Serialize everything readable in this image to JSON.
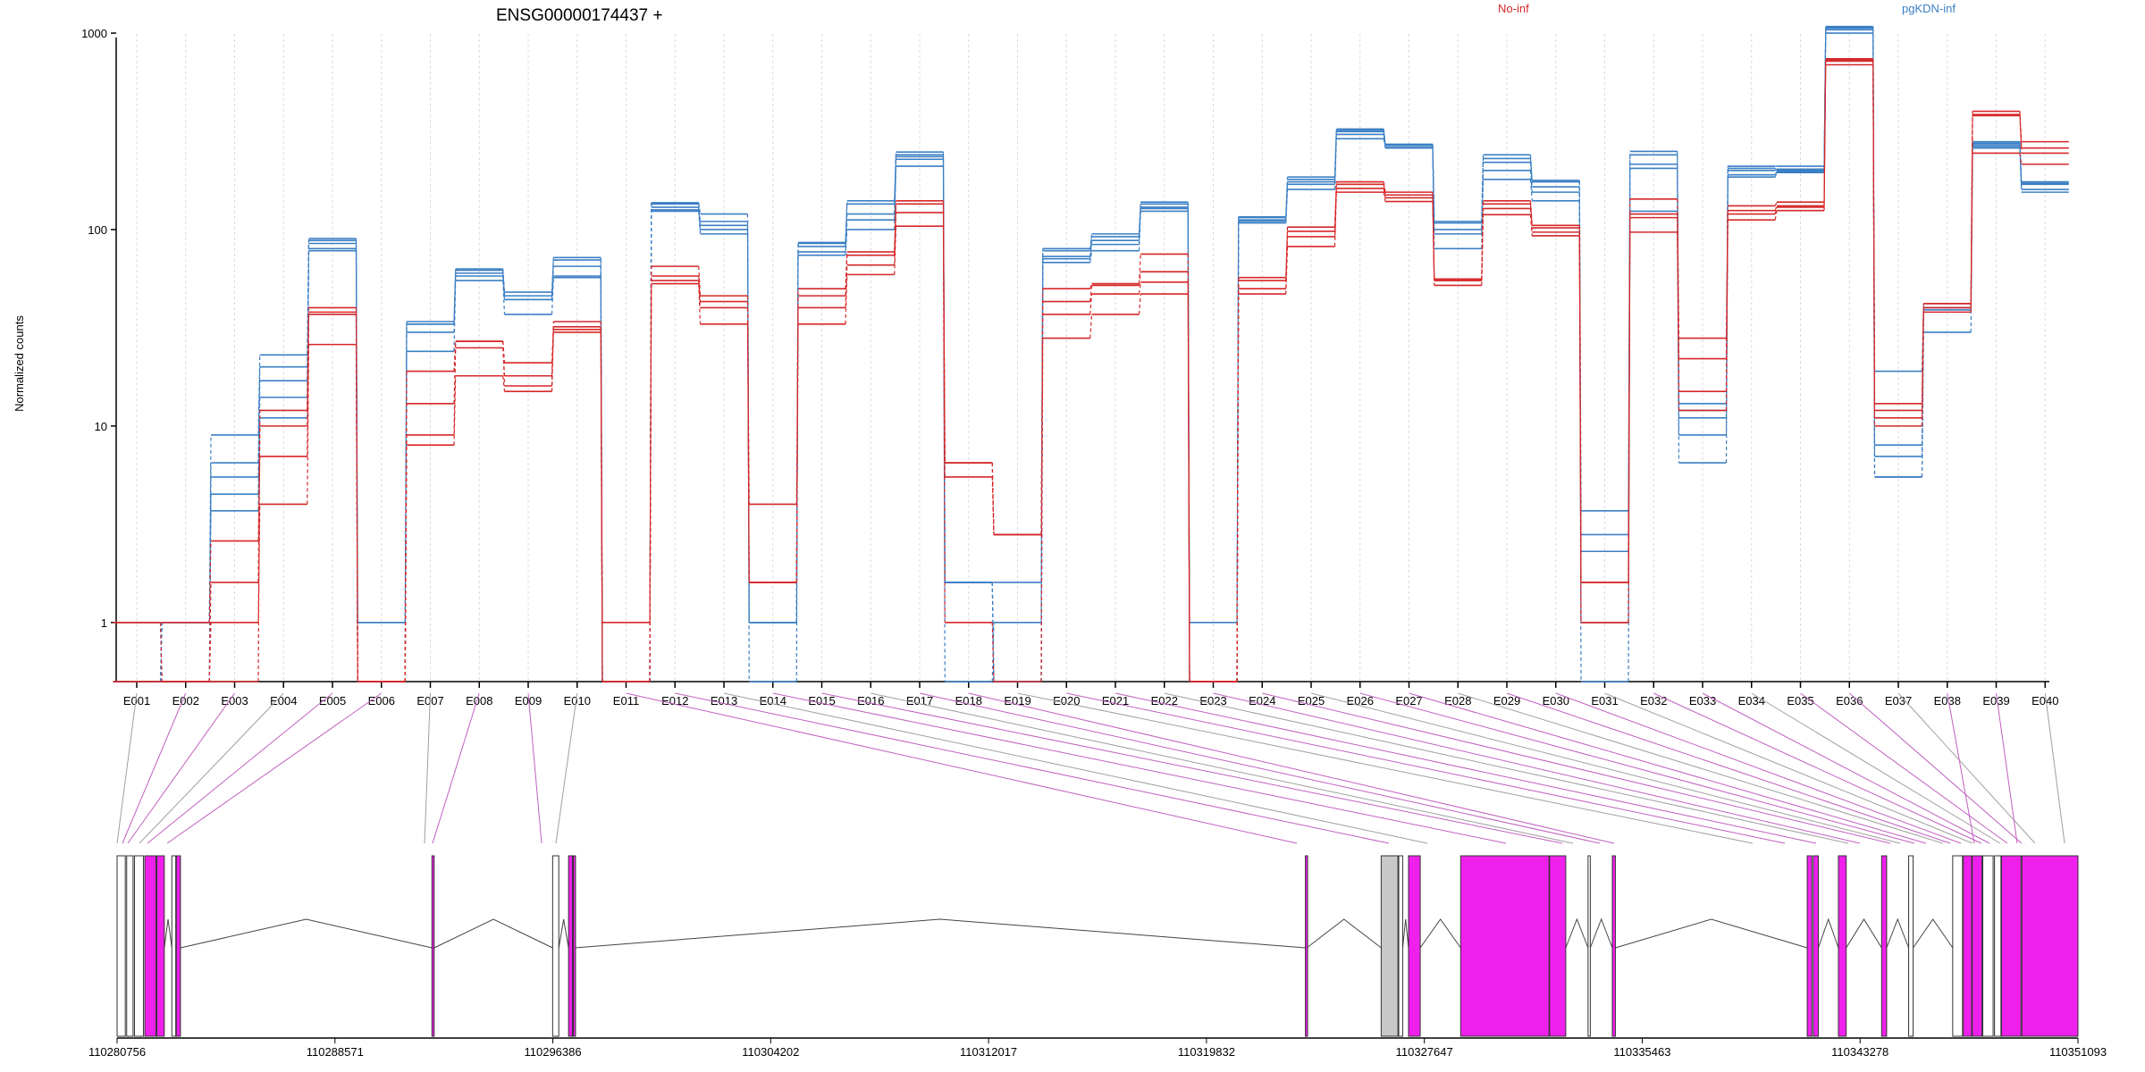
{
  "title": "ENSG00000174437 +",
  "legend": [
    {
      "label": "No-inf",
      "color": "#d62728"
    },
    {
      "label": "pgKDN-inf",
      "color": "#3b7fc4"
    }
  ],
  "colors": {
    "no_inf": "#d62728",
    "pgkdn_inf": "#3b7fc4",
    "exon_tested": "#f020ec",
    "exon_gray": "#c8c8c8",
    "connector_tested": "#c060c0",
    "connector_plain": "#a0a0a0",
    "grid": "#d8d8e8"
  },
  "chart_data": {
    "type": "line",
    "ylabel": "Normalized counts",
    "yscale": "log",
    "ylim": [
      0.5,
      1300
    ],
    "yticks": [
      1,
      10,
      100,
      1000
    ],
    "ytick_labels": [
      "1",
      "10",
      "100",
      "1000"
    ],
    "categories": [
      "E001",
      "E002",
      "E003",
      "E004",
      "E005",
      "E006",
      "E007",
      "E008",
      "E009",
      "E010",
      "E011",
      "E012",
      "E013",
      "E014",
      "E015",
      "E016",
      "E017",
      "E018",
      "E019",
      "E020",
      "E021",
      "E022",
      "E023",
      "E024",
      "E025",
      "E026",
      "E027",
      "E028",
      "E029",
      "E030",
      "E031",
      "E032",
      "E033",
      "E034",
      "E035",
      "E036",
      "E037",
      "E038",
      "E039",
      "E040"
    ],
    "series": [
      {
        "group": "pgKDN-inf",
        "values": [
          0.5,
          0.5,
          5.5,
          17,
          80,
          1,
          24,
          55,
          37,
          57,
          0.5,
          124,
          95,
          1,
          74,
          100,
          210,
          1.6,
          0.5,
          68,
          78,
          124,
          0.5,
          108,
          160,
          290,
          260,
          80,
          180,
          140,
          0.5,
          124,
          6.5,
          185,
          195,
          1000,
          5.5,
          30,
          260,
          155
        ]
      },
      {
        "group": "pgKDN-inf",
        "values": [
          0.5,
          1,
          9,
          23,
          88,
          1,
          33,
          62,
          44,
          65,
          0.5,
          135,
          110,
          1,
          86,
          120,
          235,
          1.6,
          1.6,
          80,
          92,
          135,
          1,
          115,
          180,
          320,
          270,
          108,
          220,
          165,
          3.7,
          205,
          13,
          205,
          200,
          1070,
          8,
          40,
          280,
          175
        ]
      },
      {
        "group": "pgKDN-inf",
        "values": [
          1,
          0.5,
          6.5,
          20,
          85,
          0.5,
          30,
          60,
          46,
          70,
          0.5,
          137,
          120,
          1,
          82,
          135,
          240,
          0.5,
          1,
          73,
          88,
          130,
          0.5,
          110,
          175,
          315,
          268,
          100,
          230,
          175,
          2.8,
          240,
          12,
          200,
          203,
          1060,
          19,
          42,
          270,
          170
        ]
      },
      {
        "group": "pgKDN-inf",
        "values": [
          0.5,
          1,
          4.5,
          14,
          78,
          0.5,
          33,
          58,
          44,
          58,
          0.5,
          126,
          105,
          0.5,
          77,
          112,
          228,
          1.6,
          0.5,
          71,
          84,
          128,
          0.5,
          112,
          170,
          305,
          262,
          95,
          200,
          155,
          1,
          215,
          9,
          190,
          198,
          1040,
          7,
          40,
          265,
          160
        ]
      },
      {
        "group": "pgKDN-inf",
        "values": [
          0.5,
          1,
          3.7,
          11,
          90,
          0.5,
          34,
          63,
          48,
          72,
          0.5,
          130,
          100,
          1,
          85,
          140,
          248,
          1.6,
          0.5,
          78,
          95,
          138,
          0.5,
          116,
          185,
          325,
          272,
          110,
          240,
          178,
          2.3,
          250,
          11,
          210,
          210,
          1080,
          5.5,
          39,
          275,
          172
        ]
      },
      {
        "group": "No-inf",
        "values": [
          1,
          0.5,
          1,
          4,
          26,
          0.5,
          8,
          18,
          15,
          30,
          1,
          53,
          33,
          1.6,
          33,
          59,
          104,
          1,
          0.5,
          28,
          37,
          47,
          0.5,
          47,
          82,
          155,
          139,
          52,
          119,
          93,
          1,
          97,
          12,
          112,
          125,
          690,
          10,
          38,
          245,
          215
        ]
      },
      {
        "group": "No-inf",
        "values": [
          1,
          1,
          2.6,
          7,
          38,
          0.5,
          13,
          25,
          18,
          31,
          0.5,
          58,
          40,
          4,
          40,
          66,
          122,
          6.5,
          2.8,
          37,
          47,
          54,
          0.5,
          50,
          92,
          162,
          145,
          56,
          128,
          97,
          1.6,
          115,
          22,
          120,
          130,
          720,
          11,
          42,
          385,
          245
        ]
      },
      {
        "group": "No-inf",
        "values": [
          0.5,
          0.5,
          1.6,
          10,
          37,
          0.5,
          9,
          27,
          21,
          32,
          0.5,
          65,
          46,
          1.6,
          46,
          74,
          135,
          5.5,
          2.8,
          43,
          52,
          61,
          0.5,
          57,
          98,
          170,
          150,
          55,
          135,
          102,
          1,
          120,
          15,
          125,
          132,
          730,
          12,
          40,
          400,
          260
        ]
      },
      {
        "group": "No-inf",
        "values": [
          0.5,
          0.5,
          0.5,
          12,
          40,
          0.5,
          19,
          27,
          16,
          34,
          0.5,
          55,
          43,
          1.6,
          50,
          77,
          140,
          6.5,
          2.8,
          50,
          53,
          75,
          0.5,
          55,
          103,
          175,
          155,
          55,
          140,
          105,
          1.6,
          143,
          28,
          132,
          138,
          740,
          13,
          42,
          380,
          280
        ]
      }
    ]
  },
  "gene_model": {
    "genomic_labels": [
      "110280756",
      "110288571",
      "110296386",
      "110304202",
      "110312017",
      "110319832",
      "110327647",
      "110335463",
      "110343278",
      "110351093"
    ]
  }
}
